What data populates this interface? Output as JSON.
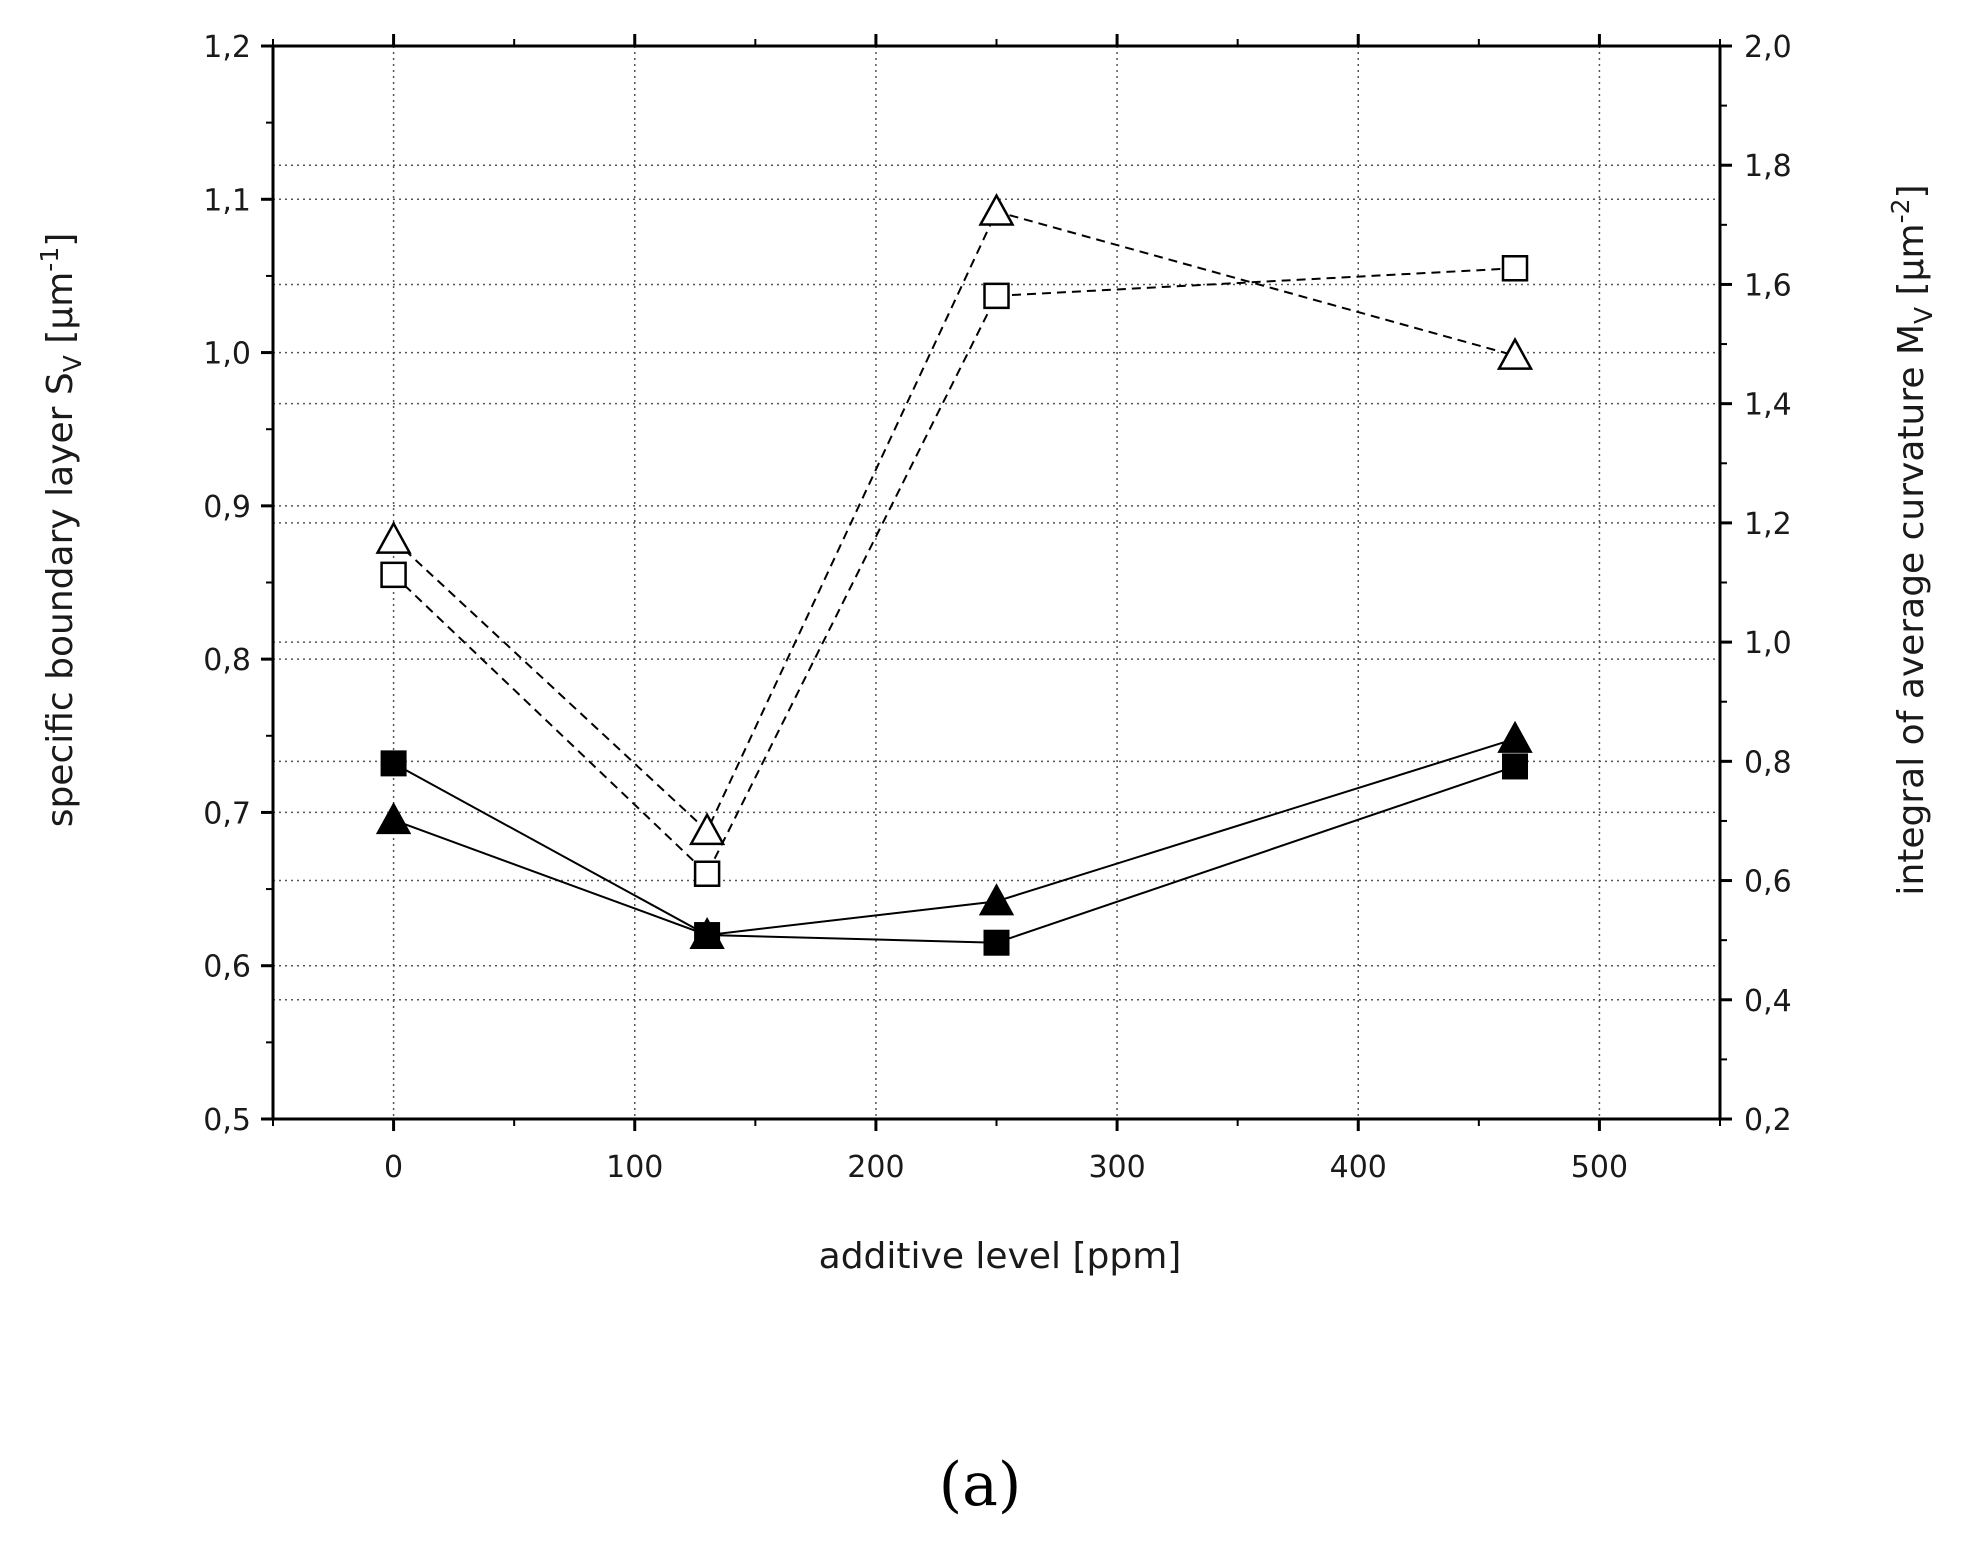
{
  "chart_data": {
    "type": "line",
    "title": "",
    "panel_label": "(a)",
    "xlabel": "additive level [ppm]",
    "ylabel_left": {
      "main": "specific boundary layer S",
      "sub": "V",
      "unit_open": " [µm",
      "sup": "-1",
      "unit_close": "]"
    },
    "ylabel_right": {
      "main": "integral of average curvature M",
      "sub": "V",
      "unit_open": " [µm",
      "sup": "-2",
      "unit_close": "]"
    },
    "xlim": [
      -50,
      550
    ],
    "ylim_left": [
      0.5,
      1.2
    ],
    "ylim_right": [
      0.2,
      2.0
    ],
    "x_ticks": [
      "0",
      "100",
      "200",
      "300",
      "400",
      "500"
    ],
    "y_left_ticks": [
      "0,5",
      "0,6",
      "0,7",
      "0,8",
      "0,9",
      "1,0",
      "1,1",
      "1,2"
    ],
    "y_right_ticks": [
      "0,2",
      "0,4",
      "0,6",
      "0,8",
      "1,0",
      "1,2",
      "1,4",
      "1,6",
      "1,8",
      "2,0"
    ],
    "grid": true,
    "series": [
      {
        "name": "open squares (dashed)",
        "marker": "square-open",
        "line": "dashed",
        "x": [
          0,
          130,
          250,
          465
        ],
        "y": [
          0.855,
          0.66,
          1.037,
          1.055
        ]
      },
      {
        "name": "open triangles (dashed)",
        "marker": "triangle-open",
        "line": "dashed",
        "x": [
          0,
          130,
          250,
          465
        ],
        "y": [
          0.878,
          0.688,
          1.092,
          0.998
        ]
      },
      {
        "name": "filled squares (solid)",
        "marker": "square-filled",
        "line": "solid",
        "x": [
          0,
          130,
          250,
          465
        ],
        "y": [
          0.732,
          0.62,
          0.615,
          0.73
        ]
      },
      {
        "name": "filled triangles (solid)",
        "marker": "triangle-filled",
        "line": "solid",
        "x": [
          0,
          130,
          250,
          465
        ],
        "y": [
          0.695,
          0.62,
          0.642,
          0.748
        ]
      }
    ]
  }
}
